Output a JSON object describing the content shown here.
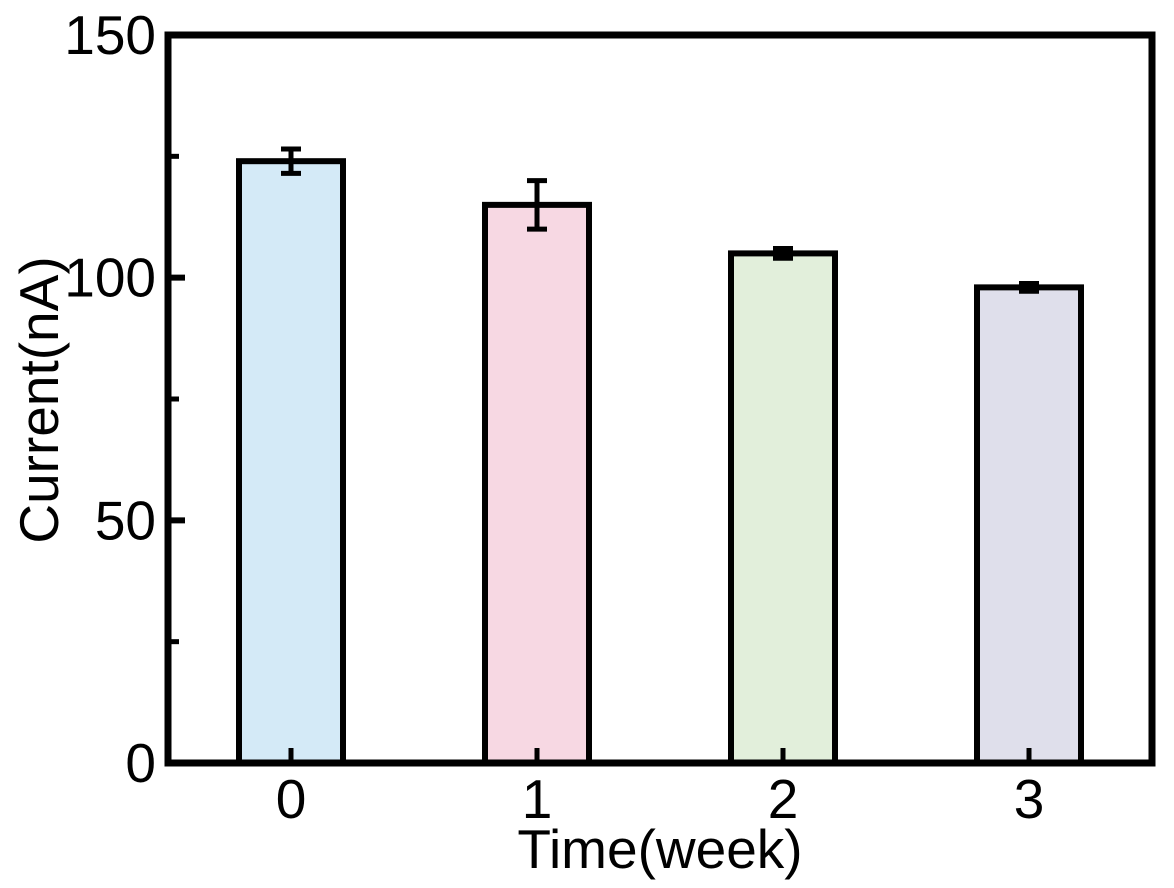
{
  "chart_data": {
    "type": "bar",
    "title": "",
    "xlabel": "Time(week)",
    "ylabel": "Current(nA)",
    "categories": [
      "0",
      "1",
      "2",
      "3"
    ],
    "series": [
      {
        "name": "Current",
        "values": [
          124,
          115,
          105,
          98
        ],
        "errors": [
          2.5,
          5,
          1,
          0.8
        ]
      }
    ],
    "bar_colors": [
      "#d4eaf7",
      "#f7d8e3",
      "#e2efdb",
      "#dfdfeb"
    ],
    "bar_edge_color": "#000000",
    "error_bar_color": "#000000",
    "axis_color": "#000000",
    "text_color": "#000000",
    "background_color": "#ffffff",
    "ylim": [
      0,
      150
    ],
    "yticks_major": [
      0,
      50,
      100,
      150
    ],
    "yticks_minor": [
      25,
      75,
      125
    ],
    "grid": false,
    "legend": null
  }
}
